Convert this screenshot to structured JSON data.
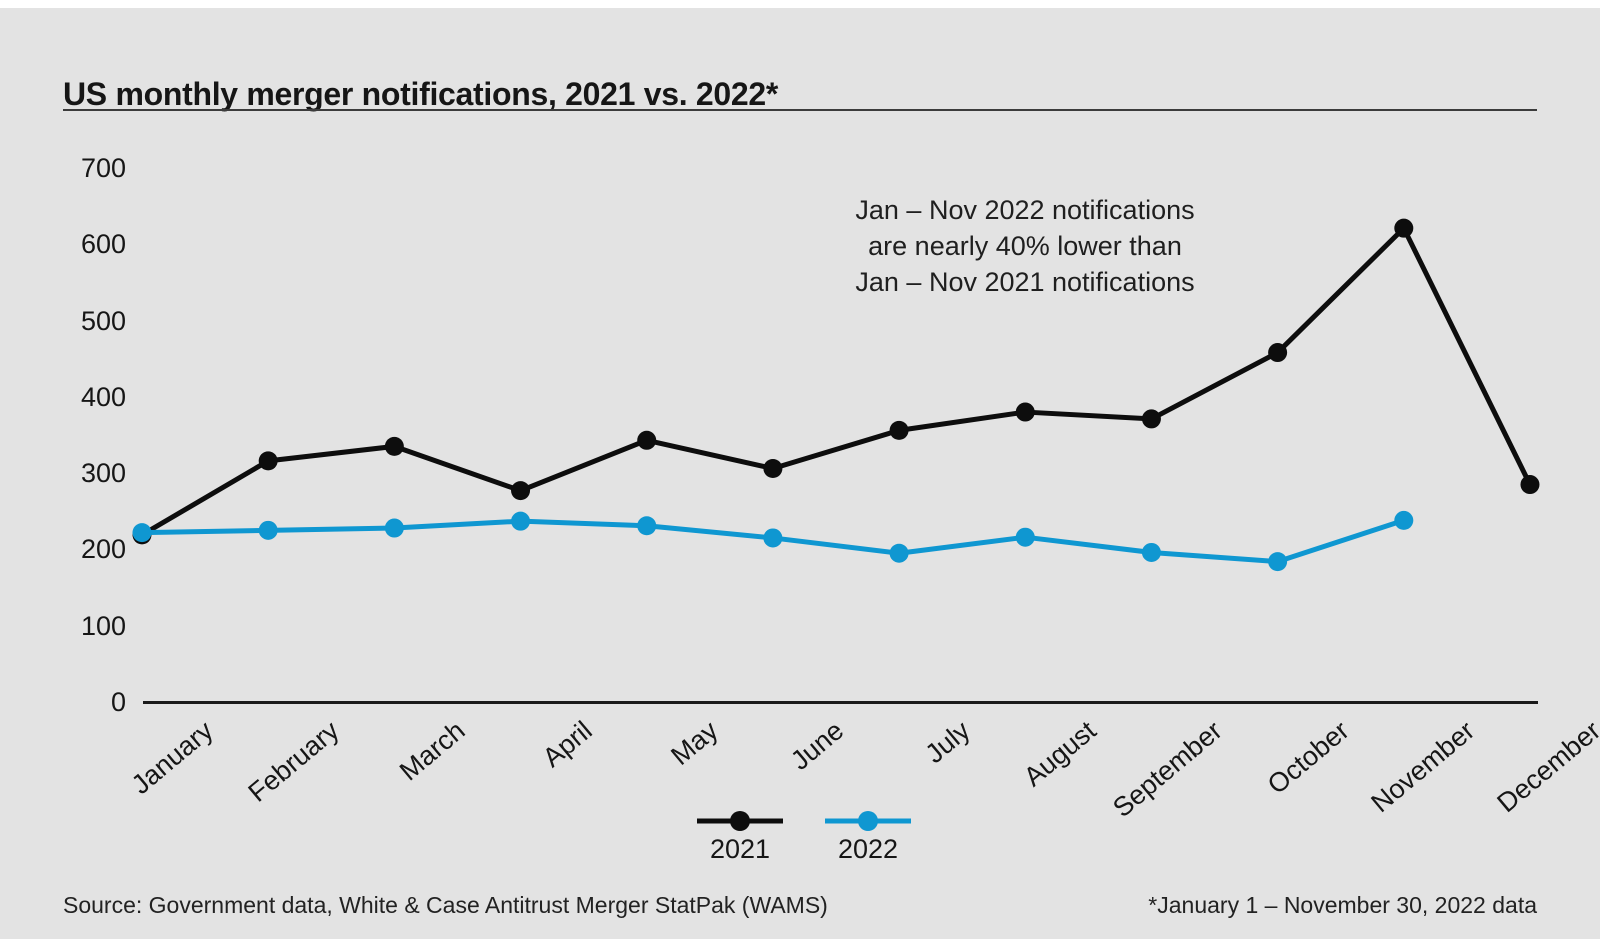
{
  "page": {
    "background": "#e3e3e3",
    "top_strip_color": "#ffffff"
  },
  "header": {
    "title": "US monthly merger notifications, 2021 vs. 2022*"
  },
  "annotation": {
    "lines": [
      "Jan – Nov 2022 notifications",
      "are nearly 40% lower than",
      "Jan – Nov 2021 notifications"
    ]
  },
  "chart_data": {
    "type": "line",
    "title": "US monthly merger notifications, 2021 vs. 2022*",
    "categories": [
      "January",
      "February",
      "March",
      "April",
      "May",
      "June",
      "July",
      "August",
      "September",
      "October",
      "November",
      "December"
    ],
    "series": [
      {
        "name": "2021",
        "color": "#0d0d0d",
        "values": [
          219,
          316,
          335,
          277,
          343,
          306,
          356,
          380,
          371,
          458,
          621,
          285
        ]
      },
      {
        "name": "2022",
        "color": "#0f97d1",
        "values": [
          222,
          225,
          228,
          237,
          231,
          215,
          195,
          216,
          196,
          184,
          238
        ]
      }
    ],
    "ylabel": "",
    "xlabel": "",
    "ylim": [
      0,
      700
    ],
    "yticks": [
      0,
      100,
      200,
      300,
      400,
      500,
      600,
      700
    ],
    "grid": false,
    "axis_color": "#1a1a1a",
    "legend_position": "bottom-center"
  },
  "legend": {
    "items": [
      {
        "label": "2021",
        "color": "#0d0d0d"
      },
      {
        "label": "2022",
        "color": "#0f97d1"
      }
    ]
  },
  "footer": {
    "source": "Source: Government data, White & Case Antitrust Merger StatPak (WAMS)",
    "note": "*January 1 – November 30, 2022 data"
  }
}
